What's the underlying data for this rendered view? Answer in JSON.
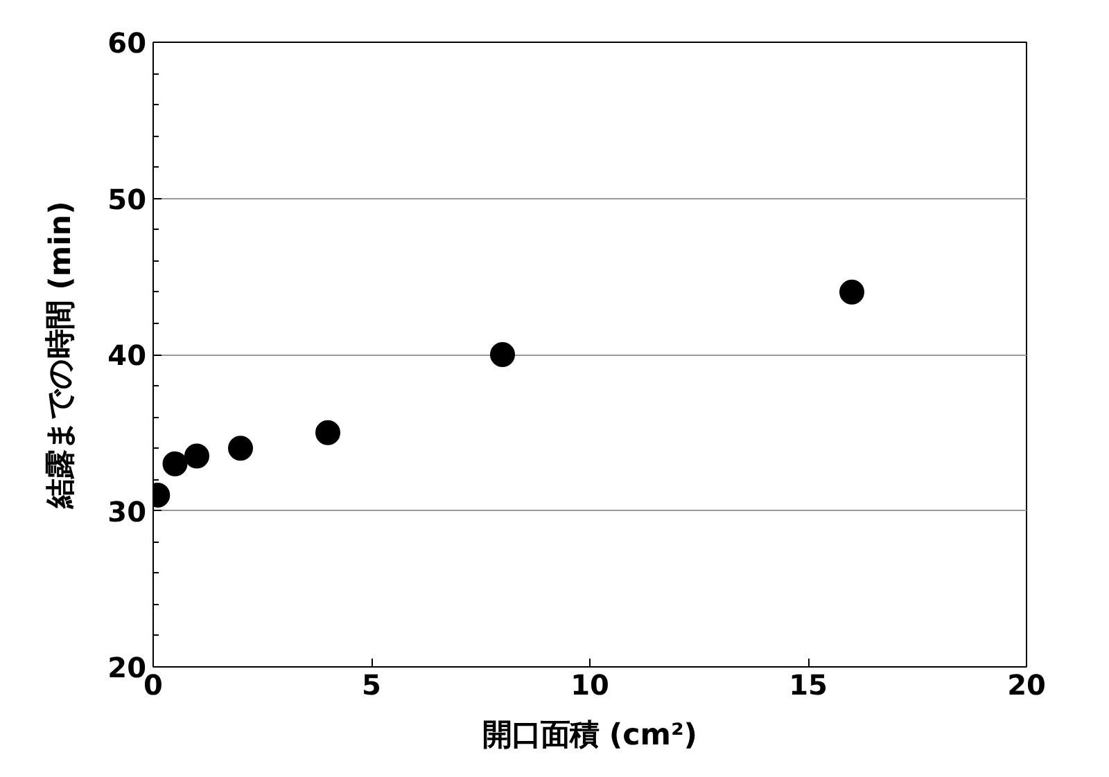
{
  "chart_data": {
    "type": "scatter",
    "xlabel": "開口面積 (cm²)",
    "ylabel": "結露までの時間 (min)",
    "x": [
      0.1,
      0.5,
      1,
      2,
      4,
      8,
      16
    ],
    "series": [
      {
        "color": "#000000",
        "values": [
          31,
          33,
          33.5,
          34,
          35,
          40,
          44
        ]
      }
    ],
    "xlim": [
      0,
      20
    ],
    "ylim": [
      20,
      60
    ],
    "xticks": [
      0,
      5,
      10,
      15,
      20
    ],
    "yticks": [
      20,
      30,
      40,
      50,
      60
    ],
    "grid": "y",
    "marker": "circle"
  }
}
